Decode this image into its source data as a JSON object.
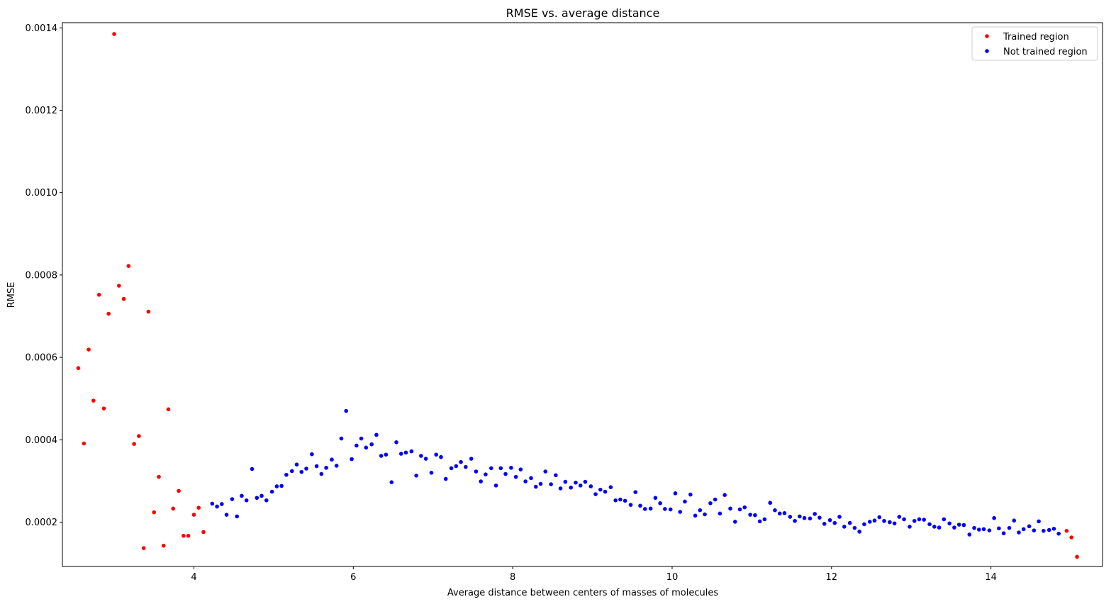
{
  "chart_data": {
    "type": "scatter",
    "title": "RMSE vs. average distance",
    "xlabel": "Average distance between centers of masses of molecules",
    "ylabel": "RMSE",
    "xlim": [
      2.35,
      15.4
    ],
    "ylim": [
      9.25e-05,
      0.0014125
    ],
    "xticks": [
      4,
      6,
      8,
      10,
      12,
      14
    ],
    "xtick_labels": [
      "4",
      "6",
      "8",
      "10",
      "12",
      "14"
    ],
    "yticks": [
      0.0002,
      0.0004,
      0.0006,
      0.0008,
      0.001,
      0.0012,
      0.0014
    ],
    "ytick_labels": [
      "0.0002",
      "0.0004",
      "0.0006",
      "0.0008",
      "0.0010",
      "0.0012",
      "0.0014"
    ],
    "grid": false,
    "legend_position": "top-right",
    "series": [
      {
        "name": "Trained region",
        "color": "#ff0000",
        "points": [
          [
            2.55,
            0.000574
          ],
          [
            2.62,
            0.000391
          ],
          [
            2.68,
            0.000619
          ],
          [
            2.74,
            0.000495
          ],
          [
            2.81,
            0.000752
          ],
          [
            2.87,
            0.000476
          ],
          [
            2.93,
            0.000706
          ],
          [
            3.0,
            0.001385
          ],
          [
            3.06,
            0.000774
          ],
          [
            3.12,
            0.000742
          ],
          [
            3.18,
            0.000822
          ],
          [
            3.25,
            0.00039
          ],
          [
            3.31,
            0.000409
          ],
          [
            3.37,
            0.000137
          ],
          [
            3.43,
            0.000711
          ],
          [
            3.5,
            0.000224
          ],
          [
            3.56,
            0.00031
          ],
          [
            3.62,
            0.000143
          ],
          [
            3.68,
            0.000474
          ],
          [
            3.74,
            0.000233
          ],
          [
            3.81,
            0.000276
          ],
          [
            3.87,
            0.000167
          ],
          [
            3.93,
            0.000167
          ],
          [
            4.0,
            0.000218
          ],
          [
            4.06,
            0.000235
          ],
          [
            4.12,
            0.000176
          ],
          [
            14.95,
            0.000179
          ],
          [
            15.01,
            0.000163
          ],
          [
            15.08,
            0.000116
          ]
        ]
      },
      {
        "name": "Not trained region",
        "color": "#0000ff",
        "points": [
          [
            4.23,
            0.000245
          ],
          [
            4.29,
            0.000238
          ],
          [
            4.35,
            0.000244
          ],
          [
            4.41,
            0.000218
          ],
          [
            4.48,
            0.000256
          ],
          [
            4.54,
            0.000214
          ],
          [
            4.6,
            0.000264
          ],
          [
            4.66,
            0.000253
          ],
          [
            4.73,
            0.000329
          ],
          [
            4.79,
            0.000259
          ],
          [
            4.85,
            0.000264
          ],
          [
            4.91,
            0.000253
          ],
          [
            4.98,
            0.000274
          ],
          [
            5.04,
            0.000287
          ],
          [
            5.1,
            0.000288
          ],
          [
            5.16,
            0.000315
          ],
          [
            5.23,
            0.000324
          ],
          [
            5.29,
            0.00034
          ],
          [
            5.35,
            0.000322
          ],
          [
            5.41,
            0.00033
          ],
          [
            5.48,
            0.000365
          ],
          [
            5.54,
            0.000336
          ],
          [
            5.6,
            0.000317
          ],
          [
            5.66,
            0.000332
          ],
          [
            5.73,
            0.000352
          ],
          [
            5.79,
            0.000337
          ],
          [
            5.85,
            0.000403
          ],
          [
            5.91,
            0.00047
          ],
          [
            5.98,
            0.000353
          ],
          [
            6.04,
            0.000386
          ],
          [
            6.1,
            0.000403
          ],
          [
            6.16,
            0.000381
          ],
          [
            6.23,
            0.000389
          ],
          [
            6.29,
            0.000412
          ],
          [
            6.35,
            0.000361
          ],
          [
            6.41,
            0.000364
          ],
          [
            6.48,
            0.000297
          ],
          [
            6.54,
            0.000394
          ],
          [
            6.6,
            0.000366
          ],
          [
            6.66,
            0.000369
          ],
          [
            6.73,
            0.000372
          ],
          [
            6.79,
            0.000313
          ],
          [
            6.85,
            0.000361
          ],
          [
            6.91,
            0.000354
          ],
          [
            6.98,
            0.00032
          ],
          [
            7.04,
            0.000364
          ],
          [
            7.1,
            0.000358
          ],
          [
            7.16,
            0.000305
          ],
          [
            7.23,
            0.000331
          ],
          [
            7.29,
            0.000336
          ],
          [
            7.35,
            0.000346
          ],
          [
            7.41,
            0.000334
          ],
          [
            7.48,
            0.000354
          ],
          [
            7.54,
            0.000323
          ],
          [
            7.6,
            0.000299
          ],
          [
            7.66,
            0.000316
          ],
          [
            7.73,
            0.000331
          ],
          [
            7.79,
            0.000289
          ],
          [
            7.85,
            0.000331
          ],
          [
            7.91,
            0.000317
          ],
          [
            7.98,
            0.000332
          ],
          [
            8.04,
            0.00031
          ],
          [
            8.1,
            0.000328
          ],
          [
            8.16,
            0.000299
          ],
          [
            8.23,
            0.000307
          ],
          [
            8.29,
            0.000286
          ],
          [
            8.35,
            0.000293
          ],
          [
            8.41,
            0.000323
          ],
          [
            8.48,
            0.000292
          ],
          [
            8.54,
            0.000314
          ],
          [
            8.6,
            0.000282
          ],
          [
            8.66,
            0.000298
          ],
          [
            8.73,
            0.000284
          ],
          [
            8.79,
            0.000296
          ],
          [
            8.85,
            0.000289
          ],
          [
            8.91,
            0.000298
          ],
          [
            8.98,
            0.000287
          ],
          [
            9.04,
            0.000268
          ],
          [
            9.1,
            0.000279
          ],
          [
            9.16,
            0.000274
          ],
          [
            9.23,
            0.000285
          ],
          [
            9.29,
            0.000253
          ],
          [
            9.35,
            0.000255
          ],
          [
            9.41,
            0.000252
          ],
          [
            9.48,
            0.000242
          ],
          [
            9.54,
            0.000273
          ],
          [
            9.6,
            0.00024
          ],
          [
            9.66,
            0.000232
          ],
          [
            9.73,
            0.000233
          ],
          [
            9.79,
            0.000259
          ],
          [
            9.85,
            0.000246
          ],
          [
            9.91,
            0.000232
          ],
          [
            9.98,
            0.000231
          ],
          [
            10.04,
            0.00027
          ],
          [
            10.1,
            0.000225
          ],
          [
            10.16,
            0.00025
          ],
          [
            10.23,
            0.000267
          ],
          [
            10.29,
            0.000216
          ],
          [
            10.35,
            0.000229
          ],
          [
            10.41,
            0.000219
          ],
          [
            10.48,
            0.000246
          ],
          [
            10.54,
            0.000255
          ],
          [
            10.6,
            0.000221
          ],
          [
            10.66,
            0.000266
          ],
          [
            10.73,
            0.000233
          ],
          [
            10.79,
            0.000201
          ],
          [
            10.85,
            0.000231
          ],
          [
            10.91,
            0.000236
          ],
          [
            10.98,
            0.000218
          ],
          [
            11.04,
            0.000217
          ],
          [
            11.1,
            0.000202
          ],
          [
            11.16,
            0.000207
          ],
          [
            11.23,
            0.000247
          ],
          [
            11.29,
            0.000229
          ],
          [
            11.35,
            0.000221
          ],
          [
            11.41,
            0.000222
          ],
          [
            11.48,
            0.000213
          ],
          [
            11.54,
            0.000203
          ],
          [
            11.6,
            0.000214
          ],
          [
            11.66,
            0.00021
          ],
          [
            11.73,
            0.000209
          ],
          [
            11.79,
            0.00022
          ],
          [
            11.85,
            0.000211
          ],
          [
            11.91,
            0.000196
          ],
          [
            11.98,
            0.000205
          ],
          [
            12.04,
            0.000198
          ],
          [
            12.1,
            0.000213
          ],
          [
            12.16,
            0.000189
          ],
          [
            12.23,
            0.000198
          ],
          [
            12.29,
            0.000186
          ],
          [
            12.35,
            0.000177
          ],
          [
            12.41,
            0.000195
          ],
          [
            12.48,
            0.000201
          ],
          [
            12.54,
            0.000204
          ],
          [
            12.6,
            0.000212
          ],
          [
            12.66,
            0.000203
          ],
          [
            12.73,
            0.0002
          ],
          [
            12.79,
            0.000197
          ],
          [
            12.85,
            0.000213
          ],
          [
            12.91,
            0.000207
          ],
          [
            12.98,
            0.000189
          ],
          [
            13.04,
            0.000203
          ],
          [
            13.1,
            0.000207
          ],
          [
            13.16,
            0.000206
          ],
          [
            13.23,
            0.000195
          ],
          [
            13.29,
            0.000189
          ],
          [
            13.35,
            0.000187
          ],
          [
            13.41,
            0.000207
          ],
          [
            13.48,
            0.000197
          ],
          [
            13.54,
            0.000187
          ],
          [
            13.6,
            0.000194
          ],
          [
            13.66,
            0.000193
          ],
          [
            13.73,
            0.00017
          ],
          [
            13.79,
            0.000186
          ],
          [
            13.85,
            0.000182
          ],
          [
            13.91,
            0.000183
          ],
          [
            13.98,
            0.00018
          ],
          [
            14.04,
            0.00021
          ],
          [
            14.1,
            0.000185
          ],
          [
            14.16,
            0.000173
          ],
          [
            14.23,
            0.000186
          ],
          [
            14.29,
            0.000204
          ],
          [
            14.35,
            0.000175
          ],
          [
            14.41,
            0.000183
          ],
          [
            14.48,
            0.00019
          ],
          [
            14.54,
            0.00018
          ],
          [
            14.6,
            0.000202
          ],
          [
            14.66,
            0.000179
          ],
          [
            14.73,
            0.000181
          ],
          [
            14.79,
            0.000184
          ],
          [
            14.85,
            0.000172
          ]
        ]
      }
    ]
  }
}
